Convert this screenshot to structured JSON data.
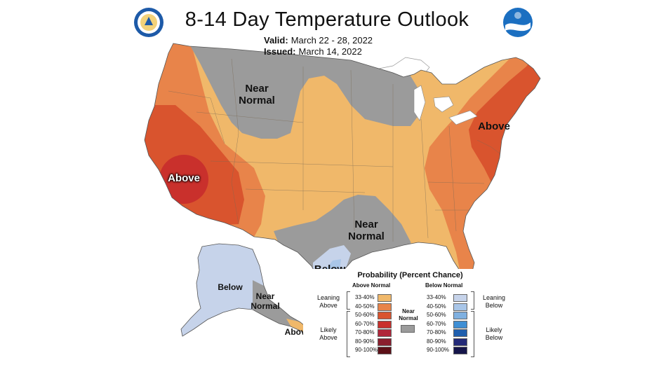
{
  "header": {
    "title": "8-14 Day Temperature Outlook",
    "valid_label": "Valid:",
    "valid_value": "March 22 - 28, 2022",
    "issued_label": "Issued:",
    "issued_value": "March 14, 2022",
    "left_logo": "commerce-seal-icon",
    "right_logo": "noaa-logo-icon"
  },
  "map": {
    "region_labels": {
      "near_normal_north": "Near\nNormal",
      "above_west": "Above",
      "above_northeast": "Above",
      "near_normal_texas": "Near\nNormal",
      "below_texas": "Below",
      "below_alaska": "Below",
      "near_normal_alaska": "Near\nNormal",
      "above_alaska_panhandle": "Above"
    },
    "colors": {
      "above_33_40": "#f0b86a",
      "above_40_50": "#e8844a",
      "above_50_60": "#d9542e",
      "above_60_70": "#c9302c",
      "near_normal": "#9b9b9b",
      "below_33_40": "#c6d3ea",
      "below_40_50": "#a9c6e8"
    }
  },
  "legend": {
    "title": "Probability (Percent Chance)",
    "above_header": "Above Normal",
    "below_header": "Below Normal",
    "near_normal": "Near\nNormal",
    "leaning_above": "Leaning\nAbove",
    "likely_above": "Likely\nAbove",
    "leaning_below": "Leaning\nBelow",
    "likely_below": "Likely\nBelow",
    "above_rows": [
      {
        "label": "33-40%",
        "color": "#f0b86a"
      },
      {
        "label": "40-50%",
        "color": "#e8844a"
      },
      {
        "label": "50-60%",
        "color": "#d9542e"
      },
      {
        "label": "60-70%",
        "color": "#c9302c"
      },
      {
        "label": "70-80%",
        "color": "#b0263a"
      },
      {
        "label": "80-90%",
        "color": "#8a1e2e"
      },
      {
        "label": "90-100%",
        "color": "#5c1018"
      }
    ],
    "below_rows": [
      {
        "label": "33-40%",
        "color": "#c6d3ea"
      },
      {
        "label": "40-50%",
        "color": "#a9c6e8"
      },
      {
        "label": "50-60%",
        "color": "#7fb0e0"
      },
      {
        "label": "60-70%",
        "color": "#3f8fd4"
      },
      {
        "label": "70-80%",
        "color": "#1f5fae"
      },
      {
        "label": "80-90%",
        "color": "#232a78"
      },
      {
        "label": "90-100%",
        "color": "#15154a"
      }
    ],
    "near_normal_color": "#9b9b9b"
  }
}
